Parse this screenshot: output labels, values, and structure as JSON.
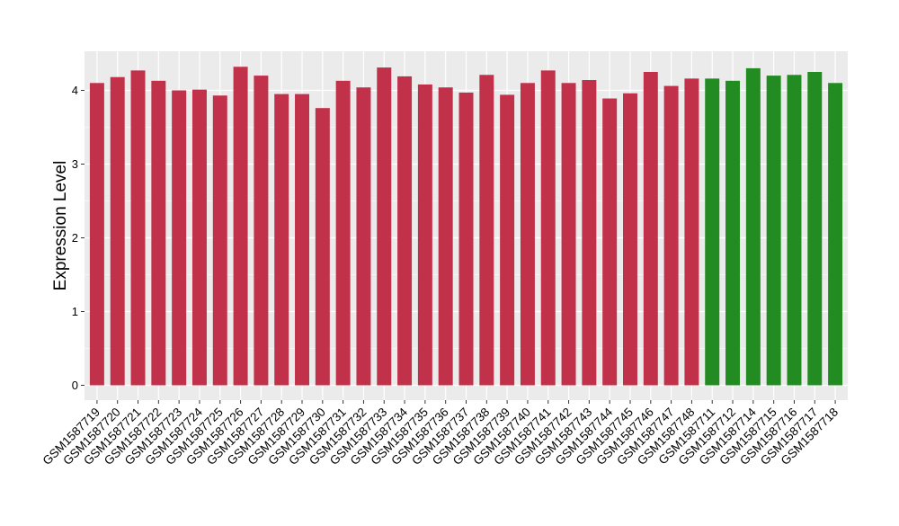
{
  "chart_data": {
    "type": "bar",
    "ylabel": "Expression Level",
    "xlabel": "",
    "ylim": [
      0,
      4.5
    ],
    "y_ticks": [
      0,
      1,
      2,
      3,
      4
    ],
    "grid": true,
    "panel_background": "#EBEBEB",
    "grid_color": "#FFFFFF",
    "categories": [
      "GSM1587719",
      "GSM1587720",
      "GSM1587721",
      "GSM1587722",
      "GSM1587723",
      "GSM1587724",
      "GSM1587725",
      "GSM1587726",
      "GSM1587727",
      "GSM1587728",
      "GSM1587729",
      "GSM1587730",
      "GSM1587731",
      "GSM1587732",
      "GSM1587733",
      "GSM1587734",
      "GSM1587735",
      "GSM1587736",
      "GSM1587737",
      "GSM1587738",
      "GSM1587739",
      "GSM1587740",
      "GSM1587741",
      "GSM1587742",
      "GSM1587743",
      "GSM1587744",
      "GSM1587745",
      "GSM1587746",
      "GSM1587747",
      "GSM1587748",
      "GSM1587711",
      "GSM1587712",
      "GSM1587714",
      "GSM1587715",
      "GSM1587716",
      "GSM1587717",
      "GSM1587718"
    ],
    "values": [
      4.1,
      4.18,
      4.27,
      4.13,
      4.0,
      4.01,
      3.93,
      4.32,
      4.2,
      3.95,
      3.95,
      3.76,
      4.13,
      4.04,
      4.31,
      4.19,
      4.08,
      4.04,
      3.97,
      4.21,
      3.94,
      4.1,
      4.27,
      4.1,
      4.14,
      3.89,
      3.96,
      4.25,
      4.06,
      4.16,
      4.16,
      4.13,
      4.3,
      4.2,
      4.21,
      4.25,
      4.1
    ],
    "groups": [
      "A",
      "A",
      "A",
      "A",
      "A",
      "A",
      "A",
      "A",
      "A",
      "A",
      "A",
      "A",
      "A",
      "A",
      "A",
      "A",
      "A",
      "A",
      "A",
      "A",
      "A",
      "A",
      "A",
      "A",
      "A",
      "A",
      "A",
      "A",
      "A",
      "A",
      "B",
      "B",
      "B",
      "B",
      "B",
      "B",
      "B"
    ],
    "group_colors": {
      "A": "#C1314A",
      "B": "#228B22"
    }
  }
}
